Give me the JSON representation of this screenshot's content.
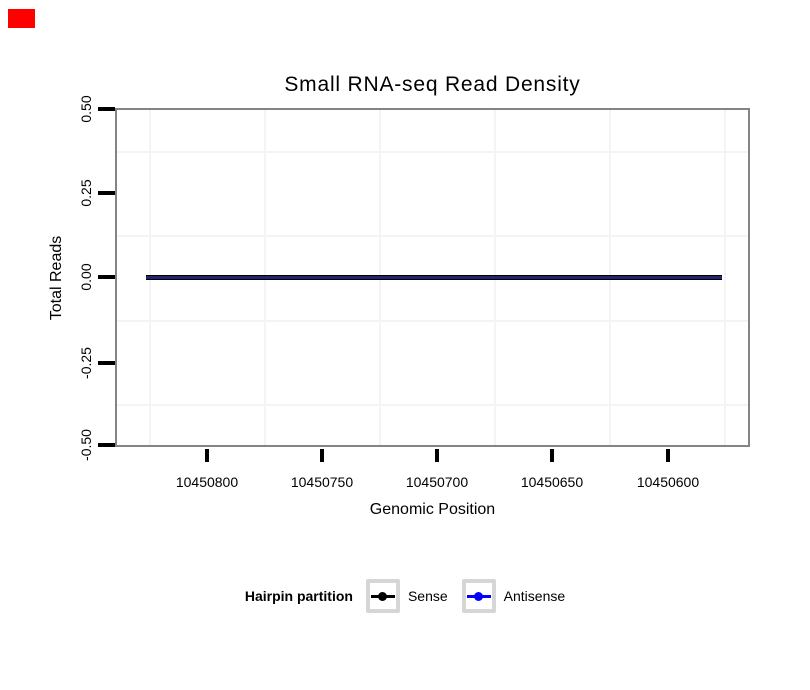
{
  "title": "Small RNA-seq Read Density",
  "chart_data": {
    "type": "line",
    "title": "Small RNA-seq Read Density",
    "xlabel": "Genomic Position",
    "ylabel": "Total Reads",
    "x_ticks": [
      "10450800",
      "10450750",
      "10450700",
      "10450650",
      "10450600"
    ],
    "y_ticks": [
      "0.50",
      "0.25",
      "0.00",
      "-0.25",
      "-0.50"
    ],
    "x_axis_reversed": true,
    "xlim": [
      10450830,
      10450575
    ],
    "ylim": [
      -0.5,
      0.5
    ],
    "grid": "minor-only",
    "series": [
      {
        "name": "Sense",
        "color": "#000000",
        "x_start": 10450827,
        "x_end": 10450577,
        "constant_y": 0
      },
      {
        "name": "Antisense",
        "color": "#0000ff",
        "x_start": 10450827,
        "x_end": 10450577,
        "constant_y": 0
      }
    ],
    "legend_position": "bottom"
  },
  "legend": {
    "title": "Hairpin partition",
    "items": [
      {
        "label": "Sense",
        "color": "#000000"
      },
      {
        "label": "Antisense",
        "color": "#0000ff"
      }
    ]
  },
  "colors": {
    "marker": "#ff0000",
    "panel_border": "#848484",
    "gridline": "#f4f4f4",
    "line_core": "#23236f",
    "line_edge": "#000000"
  }
}
